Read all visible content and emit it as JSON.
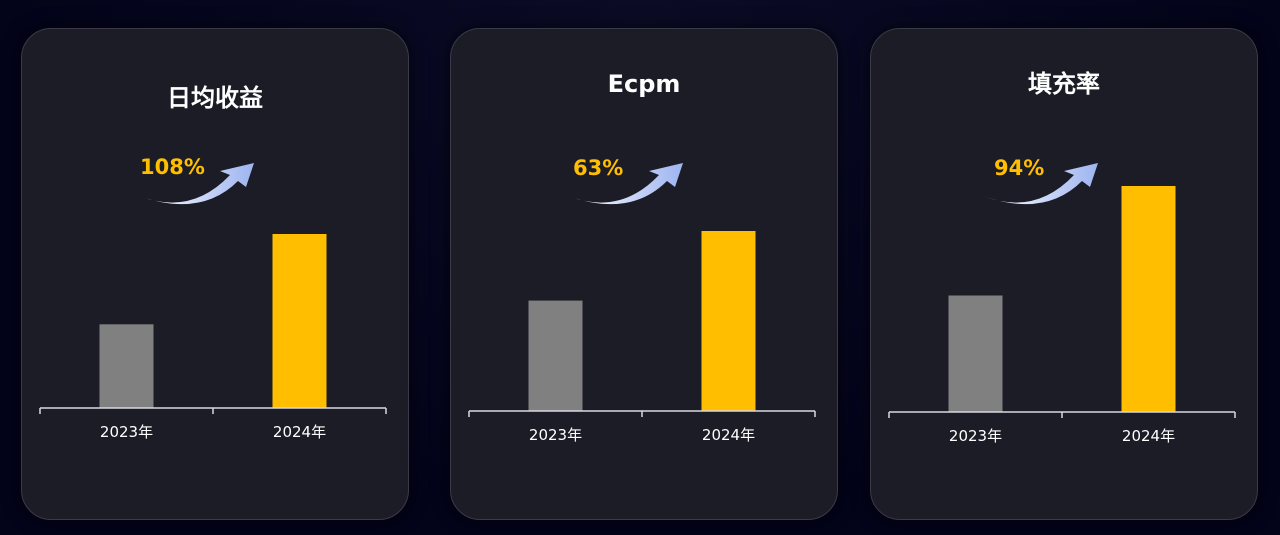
{
  "chart_data": [
    {
      "type": "bar",
      "title": "日均收益",
      "annotation": "108%",
      "categories": [
        "2023年",
        "2024年"
      ],
      "values": [
        1.0,
        2.08
      ],
      "ylim": [
        0,
        2.08
      ],
      "colors": [
        "#808080",
        "#ffbf00"
      ],
      "grid": false
    },
    {
      "type": "bar",
      "title": "Ecpm",
      "annotation": "63%",
      "categories": [
        "2023年",
        "2024年"
      ],
      "values": [
        1.0,
        1.63
      ],
      "ylim": [
        0,
        1.63
      ],
      "colors": [
        "#808080",
        "#ffbf00"
      ],
      "grid": false
    },
    {
      "type": "bar",
      "title": "填充率",
      "annotation": "94%",
      "categories": [
        "2023年",
        "2024年"
      ],
      "values": [
        1.0,
        1.94
      ],
      "ylim": [
        0,
        1.94
      ],
      "colors": [
        "#808080",
        "#ffbf00"
      ],
      "grid": false
    }
  ],
  "colors": {
    "background": "#03031a",
    "card": "#1c1c27",
    "accent": "#ffbf00",
    "bar_previous": "#808080",
    "arrow": "#9db4f0"
  },
  "icons": {
    "growth_arrow": "curved-up-arrow-icon"
  }
}
